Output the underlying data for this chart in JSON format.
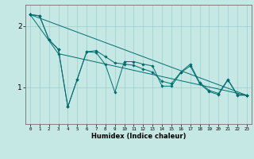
{
  "xlabel": "Humidex (Indice chaleur)",
  "bg_color": "#c5e8e5",
  "line_color": "#006e6e",
  "grid_color": "#9ecece",
  "xlim": [
    -0.5,
    23.5
  ],
  "ylim": [
    0.4,
    2.35
  ],
  "yticks": [
    1,
    2
  ],
  "xticks": [
    0,
    1,
    2,
    3,
    4,
    5,
    6,
    7,
    8,
    9,
    10,
    11,
    12,
    13,
    14,
    15,
    16,
    17,
    18,
    19,
    20,
    21,
    22,
    23
  ],
  "series": [
    {
      "x": [
        0,
        1,
        2,
        3,
        4,
        5,
        6,
        7,
        8,
        9,
        10,
        11,
        12,
        13,
        14,
        15,
        16,
        17,
        18,
        19,
        20,
        21,
        22,
        23
      ],
      "y": [
        2.19,
        2.17,
        1.78,
        1.62,
        0.68,
        1.13,
        1.58,
        1.57,
        1.37,
        0.92,
        1.42,
        1.42,
        1.38,
        1.35,
        1.02,
        1.02,
        1.24,
        1.35,
        1.06,
        0.93,
        0.88,
        1.12,
        0.87,
        0.87
      ]
    },
    {
      "x": [
        0,
        1,
        2,
        3,
        4,
        5,
        6,
        7,
        8,
        9,
        10,
        11,
        12,
        13,
        14,
        15,
        16,
        17,
        18,
        19,
        20,
        21,
        22,
        23
      ],
      "y": [
        2.19,
        2.17,
        1.78,
        1.62,
        0.68,
        1.13,
        1.58,
        1.6,
        1.5,
        1.4,
        1.38,
        1.36,
        1.3,
        1.25,
        1.1,
        1.06,
        1.25,
        1.38,
        1.08,
        0.95,
        0.9,
        1.13,
        0.88,
        0.87
      ]
    },
    {
      "x": [
        0,
        3,
        23
      ],
      "y": [
        2.19,
        1.55,
        0.87
      ]
    },
    {
      "x": [
        0,
        23
      ],
      "y": [
        2.19,
        0.87
      ]
    }
  ]
}
